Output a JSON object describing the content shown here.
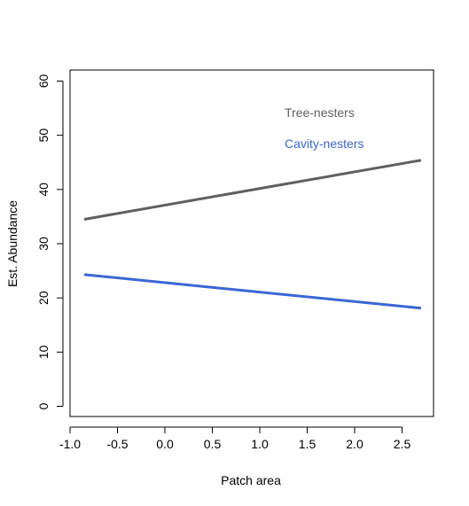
{
  "chart_data": {
    "type": "line",
    "xlabel": "Patch area",
    "ylabel": "Est. Abundance",
    "xlim": [
      -1.0,
      2.7
    ],
    "ylim": [
      0,
      60
    ],
    "x_ticks": [
      -1.0,
      -0.5,
      0.0,
      0.5,
      1.0,
      1.5,
      2.0,
      2.5
    ],
    "x_tick_labels": [
      "-1.0",
      "-0.5",
      "0.0",
      "0.5",
      "1.0",
      "1.5",
      "2.0",
      "2.5"
    ],
    "y_ticks": [
      0,
      10,
      20,
      30,
      40,
      50,
      60
    ],
    "y_tick_labels": [
      "0",
      "10",
      "20",
      "30",
      "40",
      "50",
      "60"
    ],
    "grid": false,
    "legend_position": "top-right",
    "series": [
      {
        "name": "Tree-nesters",
        "color": "#5f5f5f",
        "x": [
          -0.85,
          2.7
        ],
        "y": [
          34.5,
          45.4
        ]
      },
      {
        "name": "Cavity-nesters",
        "color": "#3a67d6",
        "x": [
          -0.85,
          2.7
        ],
        "y": [
          24.3,
          18.1
        ]
      }
    ]
  }
}
